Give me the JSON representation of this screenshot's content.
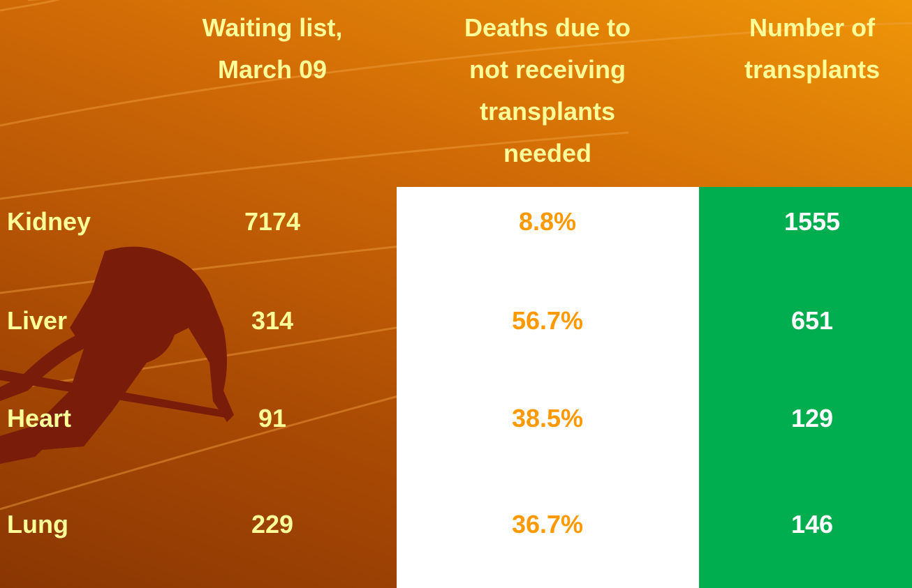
{
  "table": {
    "headers": [
      [
        "Waiting list,",
        "March 09"
      ],
      [
        "Deaths due to",
        "not receiving",
        "transplants",
        "needed"
      ],
      [
        "Number of",
        "transplants"
      ]
    ],
    "rows": [
      [
        "Kidney",
        7174,
        "8.8%",
        1555
      ],
      [
        "Liver",
        314,
        "56.7%",
        651
      ],
      [
        "Heart",
        91,
        "38.5%",
        129
      ],
      [
        "Lung",
        229,
        "36.7%",
        146
      ]
    ]
  }
}
